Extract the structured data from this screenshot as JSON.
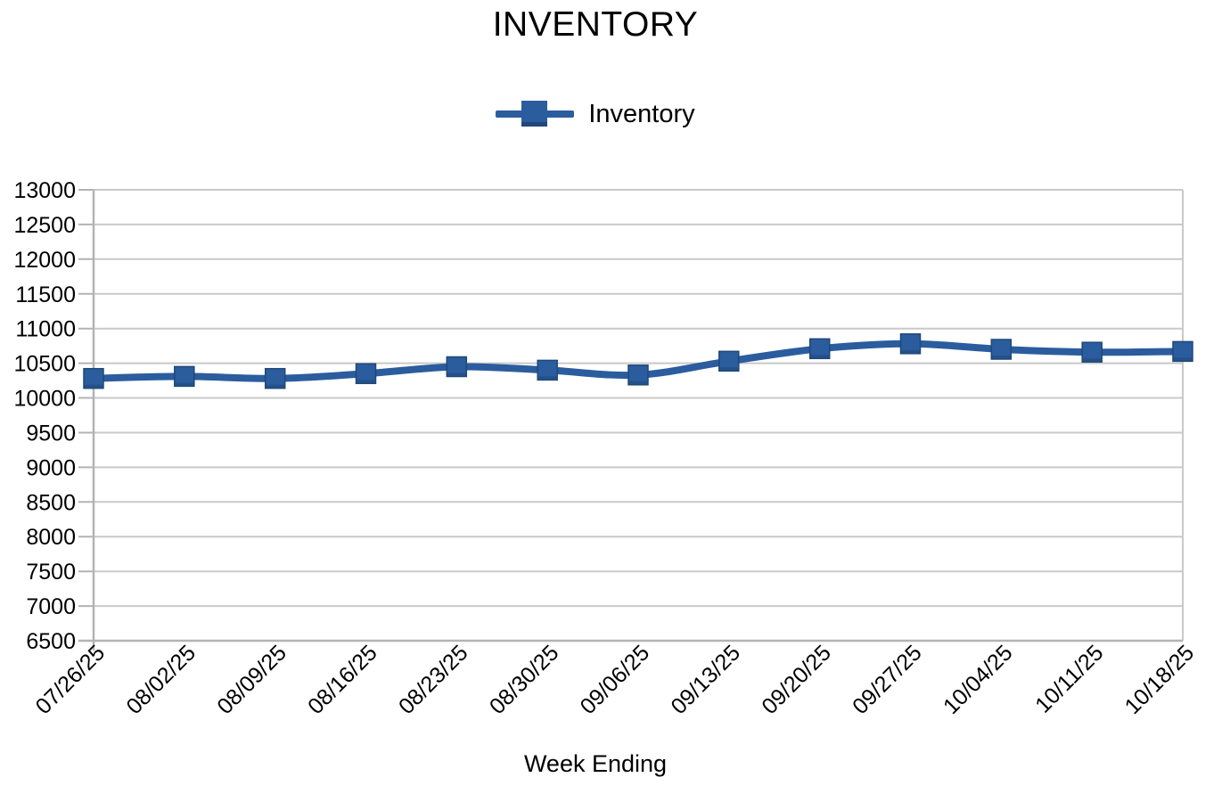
{
  "chart_data": {
    "type": "line",
    "title": "INVENTORY",
    "xlabel": "Week Ending",
    "ylabel": "",
    "legend_entries": [
      "Inventory"
    ],
    "legend_position": "top-center",
    "grid": true,
    "categories": [
      "07/26/25",
      "08/02/25",
      "08/09/25",
      "08/16/25",
      "08/23/25",
      "08/30/25",
      "09/06/25",
      "09/13/25",
      "09/20/25",
      "09/27/25",
      "10/04/25",
      "10/11/25",
      "10/18/25"
    ],
    "series": [
      {
        "name": "Inventory",
        "values": [
          10280,
          10310,
          10280,
          10350,
          10450,
          10400,
          10330,
          10530,
          10710,
          10780,
          10700,
          10660,
          10670
        ]
      }
    ],
    "ylim": [
      6500,
      13000
    ],
    "ytick_step": 500,
    "yticks": [
      6500,
      7000,
      7500,
      8000,
      8500,
      9000,
      9500,
      10000,
      10500,
      11000,
      11500,
      12000,
      12500,
      13000
    ],
    "colors": {
      "line": "#2B5C9E",
      "marker": "#2B5C9E",
      "marker_edge": "#1F4878",
      "gridline": "#C9C9C9",
      "axis": "#B3B3B3",
      "text": "#000000",
      "background": "#FFFFFF"
    }
  }
}
